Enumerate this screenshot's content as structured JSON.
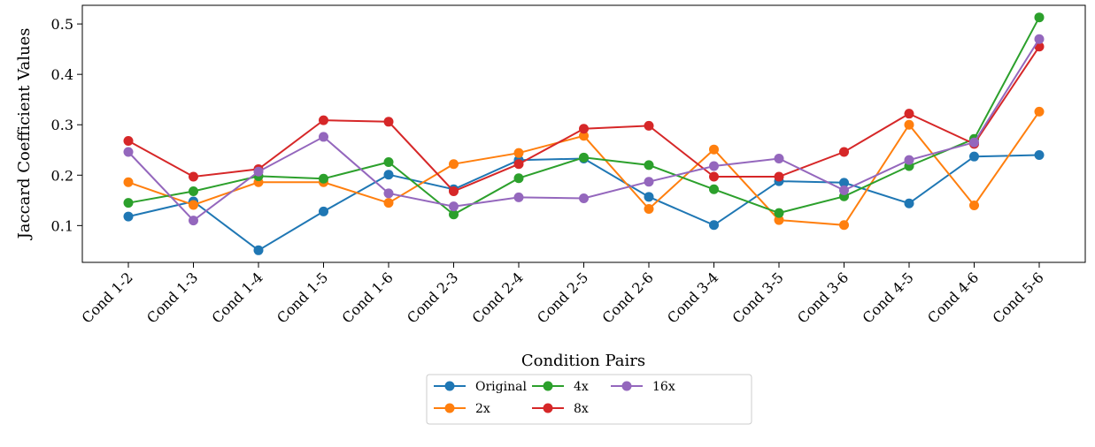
{
  "chart_data": {
    "type": "line",
    "xlabel": "Condition Pairs",
    "ylabel": "Jaccard Coefficient Values",
    "categories": [
      "Cond 1-2",
      "Cond 1-3",
      "Cond 1-4",
      "Cond 1-5",
      "Cond 1-6",
      "Cond 2-3",
      "Cond 2-4",
      "Cond 2-5",
      "Cond 2-6",
      "Cond 3-4",
      "Cond 3-5",
      "Cond 3-6",
      "Cond 4-5",
      "Cond 4-6",
      "Cond 5-6"
    ],
    "yticks": [
      "0.1",
      "0.2",
      "0.3",
      "0.4",
      "0.5"
    ],
    "ylim": [
      0.027,
      0.537
    ],
    "grid": false,
    "legend_position": "bottom-center",
    "series": [
      {
        "name": "Original",
        "color": "#1f77b4",
        "values": [
          0.118,
          0.148,
          0.051,
          0.128,
          0.201,
          0.172,
          0.23,
          0.233,
          0.157,
          0.101,
          0.188,
          0.185,
          0.144,
          0.237,
          0.24
        ]
      },
      {
        "name": "2x",
        "color": "#ff7f0e",
        "values": [
          0.186,
          0.141,
          0.186,
          0.186,
          0.145,
          0.222,
          0.244,
          0.278,
          0.133,
          0.251,
          0.111,
          0.101,
          0.3,
          0.14,
          0.326
        ]
      },
      {
        "name": "4x",
        "color": "#2ca02c",
        "values": [
          0.145,
          0.168,
          0.198,
          0.193,
          0.226,
          0.122,
          0.194,
          0.235,
          0.22,
          0.172,
          0.125,
          0.158,
          0.218,
          0.272,
          0.513
        ]
      },
      {
        "name": "8x",
        "color": "#d62728",
        "values": [
          0.268,
          0.197,
          0.212,
          0.309,
          0.306,
          0.168,
          0.222,
          0.292,
          0.298,
          0.197,
          0.197,
          0.246,
          0.322,
          0.262,
          0.455
        ]
      },
      {
        "name": "16x",
        "color": "#9467bd",
        "values": [
          0.246,
          0.11,
          0.207,
          0.276,
          0.164,
          0.138,
          0.156,
          0.154,
          0.187,
          0.218,
          0.233,
          0.17,
          0.23,
          0.265,
          0.47
        ]
      }
    ]
  }
}
